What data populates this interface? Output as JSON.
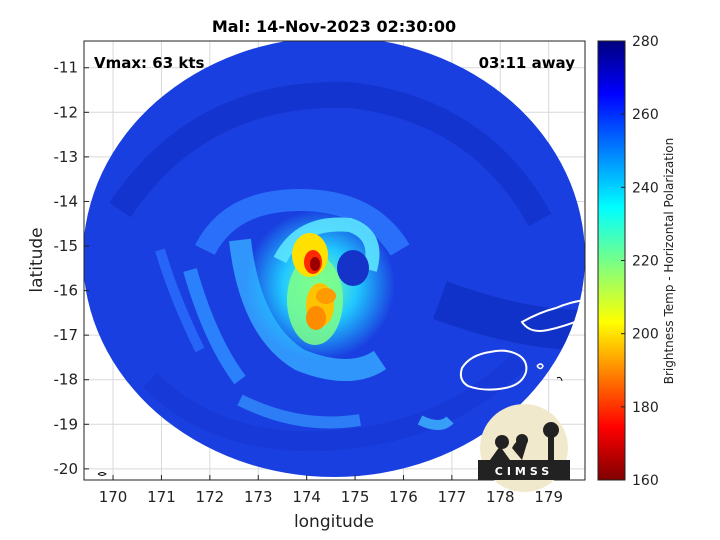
{
  "title": "Mal: 14-Nov-2023 02:30:00",
  "vmax_text": "Vmax: 63 kts",
  "time_away_text": "03:11 away",
  "chart_data": {
    "type": "heatmap",
    "title": "Mal: 14-Nov-2023 02:30:00",
    "xlabel": "longitude",
    "ylabel": "latitude",
    "xlim": [
      169.4,
      179.75
    ],
    "ylim": [
      -20.25,
      -10.4
    ],
    "x_ticks": [
      170,
      171,
      172,
      173,
      174,
      175,
      176,
      177,
      178,
      179
    ],
    "y_ticks": [
      -11,
      -12,
      -13,
      -14,
      -15,
      -16,
      -17,
      -18,
      -19,
      -20
    ],
    "grid": true,
    "swath_center": [
      174.5,
      -15.6
    ],
    "storm_eye": [
      175.0,
      -15.7
    ],
    "coldest_core": [
      174.2,
      -15.5
    ],
    "colorbar": {
      "label": "Brightness Temp - Horizontal Polarization",
      "range": [
        160,
        280
      ],
      "ticks": [
        160,
        180,
        200,
        220,
        240,
        260,
        280
      ],
      "colormap": "jet",
      "colors": [
        "#7f0000",
        "#ff0000",
        "#ffff00",
        "#00ffff",
        "#0000ff",
        "#00007f"
      ]
    }
  },
  "logo": {
    "label": "CIMSS"
  },
  "colors": {
    "background": "#ffffff",
    "swath_base": "#1a3fe0",
    "coastline": "#ffffff"
  }
}
